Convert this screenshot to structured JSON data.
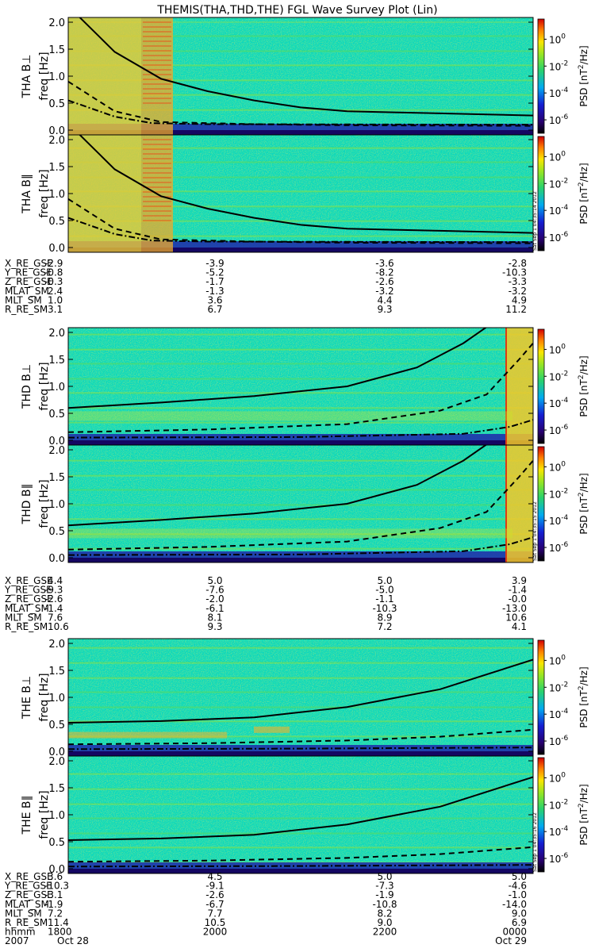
{
  "title": "THEMIS(THA,THD,THE) FGL Wave Survey Plot (Lin)",
  "colorbar": {
    "label": "PSD [nT²/Hz]",
    "label_base": "PSD [nT",
    "label_sup": "2",
    "label_tail": "/Hz]",
    "ticks": [
      {
        "base": "10",
        "exp": "0"
      },
      {
        "base": "10",
        "exp": "-2"
      },
      {
        "base": "10",
        "exp": "-4"
      },
      {
        "base": "10",
        "exp": "-6"
      }
    ]
  },
  "stamps": [
    "Sat Sep 1 04:35:14 2012",
    "Sat Sep 1 04:35:15 2012",
    "Sat Sep 1 04:35:16 2012"
  ],
  "chart_data": {
    "type": "heatmap",
    "title": "THEMIS(THA,THD,THE) FGL Wave Survey Plot (Lin)",
    "ylim": [
      0,
      2
    ],
    "yticks": [
      "0.0",
      "0.5",
      "1.0",
      "1.5",
      "2.0"
    ],
    "colorbar_range_log10": [
      -7,
      1.5
    ],
    "panels": [
      {
        "probe": "THA",
        "label": "THA B⊥",
        "ylabel": "freq [Hz]",
        "solid": [
          [
            0,
            2.3
          ],
          [
            0.1,
            1.45
          ],
          [
            0.2,
            0.95
          ],
          [
            0.3,
            0.72
          ],
          [
            0.4,
            0.55
          ],
          [
            0.5,
            0.42
          ],
          [
            0.6,
            0.35
          ],
          [
            0.7,
            0.33
          ],
          [
            0.8,
            0.31
          ],
          [
            0.9,
            0.29
          ],
          [
            1,
            0.27
          ]
        ],
        "dashed": [
          [
            0,
            0.9
          ],
          [
            0.1,
            0.35
          ],
          [
            0.2,
            0.15
          ],
          [
            0.4,
            0.11
          ],
          [
            0.6,
            0.09
          ],
          [
            1,
            0.08
          ]
        ],
        "dashdot": [
          [
            0,
            0.55
          ],
          [
            0.1,
            0.25
          ],
          [
            0.18,
            0.13
          ],
          [
            0.3,
            0.11
          ],
          [
            1,
            0.1
          ]
        ]
      },
      {
        "probe": "THA",
        "label": "THA B∥",
        "ylabel": "freq [Hz]",
        "solid": [
          [
            0,
            2.3
          ],
          [
            0.1,
            1.45
          ],
          [
            0.2,
            0.95
          ],
          [
            0.3,
            0.72
          ],
          [
            0.4,
            0.55
          ],
          [
            0.5,
            0.42
          ],
          [
            0.6,
            0.35
          ],
          [
            0.7,
            0.33
          ],
          [
            0.8,
            0.31
          ],
          [
            0.9,
            0.29
          ],
          [
            1,
            0.27
          ]
        ],
        "dashed": [
          [
            0,
            0.9
          ],
          [
            0.1,
            0.35
          ],
          [
            0.2,
            0.15
          ],
          [
            0.4,
            0.11
          ],
          [
            0.6,
            0.09
          ],
          [
            1,
            0.08
          ]
        ],
        "dashdot": [
          [
            0,
            0.55
          ],
          [
            0.1,
            0.25
          ],
          [
            0.18,
            0.13
          ],
          [
            0.3,
            0.11
          ],
          [
            1,
            0.1
          ]
        ]
      },
      {
        "probe": "THD",
        "label": "THD B⊥",
        "ylabel": "freq [Hz]",
        "solid": [
          [
            0,
            0.6
          ],
          [
            0.2,
            0.7
          ],
          [
            0.4,
            0.82
          ],
          [
            0.6,
            1.0
          ],
          [
            0.75,
            1.35
          ],
          [
            0.85,
            1.8
          ],
          [
            0.9,
            2.1
          ]
        ],
        "dashed": [
          [
            0,
            0.15
          ],
          [
            0.3,
            0.2
          ],
          [
            0.6,
            0.3
          ],
          [
            0.8,
            0.55
          ],
          [
            0.9,
            0.85
          ],
          [
            0.97,
            1.5
          ],
          [
            1,
            1.8
          ]
        ],
        "dashdot": [
          [
            0,
            0.05
          ],
          [
            0.5,
            0.06
          ],
          [
            0.85,
            0.12
          ],
          [
            0.95,
            0.25
          ],
          [
            1,
            0.38
          ]
        ]
      },
      {
        "probe": "THD",
        "label": "THD B∥",
        "ylabel": "freq [Hz]",
        "solid": [
          [
            0,
            0.6
          ],
          [
            0.2,
            0.7
          ],
          [
            0.4,
            0.82
          ],
          [
            0.6,
            1.0
          ],
          [
            0.75,
            1.35
          ],
          [
            0.85,
            1.8
          ],
          [
            0.9,
            2.1
          ]
        ],
        "dashed": [
          [
            0,
            0.15
          ],
          [
            0.3,
            0.2
          ],
          [
            0.6,
            0.3
          ],
          [
            0.8,
            0.55
          ],
          [
            0.9,
            0.85
          ],
          [
            0.97,
            1.5
          ],
          [
            1,
            1.8
          ]
        ],
        "dashdot": [
          [
            0,
            0.05
          ],
          [
            0.5,
            0.06
          ],
          [
            0.85,
            0.12
          ],
          [
            0.95,
            0.25
          ],
          [
            1,
            0.38
          ]
        ]
      },
      {
        "probe": "THE",
        "label": "THE B⊥",
        "ylabel": "freq [Hz]",
        "solid": [
          [
            0,
            0.53
          ],
          [
            0.2,
            0.56
          ],
          [
            0.4,
            0.63
          ],
          [
            0.6,
            0.82
          ],
          [
            0.8,
            1.15
          ],
          [
            1,
            1.7
          ]
        ],
        "dashed": [
          [
            0,
            0.13
          ],
          [
            0.3,
            0.15
          ],
          [
            0.6,
            0.2
          ],
          [
            0.8,
            0.27
          ],
          [
            1,
            0.4
          ]
        ],
        "dashdot": [
          [
            0,
            0.04
          ],
          [
            0.5,
            0.05
          ],
          [
            1,
            0.07
          ]
        ]
      },
      {
        "probe": "THE",
        "label": "THE B∥",
        "ylabel": "freq [Hz]",
        "solid": [
          [
            0,
            0.53
          ],
          [
            0.2,
            0.56
          ],
          [
            0.4,
            0.63
          ],
          [
            0.6,
            0.82
          ],
          [
            0.8,
            1.15
          ],
          [
            1,
            1.7
          ]
        ],
        "dashed": [
          [
            0,
            0.13
          ],
          [
            0.3,
            0.15
          ],
          [
            0.6,
            0.2
          ],
          [
            0.8,
            0.27
          ],
          [
            1,
            0.4
          ]
        ],
        "dashdot": [
          [
            0,
            0.04
          ],
          [
            0.5,
            0.05
          ],
          [
            1,
            0.07
          ]
        ]
      }
    ],
    "ephemeris": [
      {
        "probe": "THA",
        "labels": [
          "X_RE_GSE",
          "Y_RE_GSE",
          "Z_RE_GSE",
          "MLAT_SM",
          "MLT_SM",
          "R_RE_SM"
        ],
        "columns": [
          [
            "-2.9",
            "-0.8",
            "-0.3",
            "2.4",
            "1.0",
            "3.1"
          ],
          [
            "-3.9",
            "-5.2",
            "-1.7",
            "-1.3",
            "3.6",
            "6.7"
          ],
          [
            "-3.6",
            "-8.2",
            "-2.6",
            "-3.2",
            "4.4",
            "9.3"
          ],
          [
            "-2.8",
            "-10.3",
            "-3.3",
            "-3.2",
            "4.9",
            "11.2"
          ]
        ]
      },
      {
        "probe": "THD",
        "labels": [
          "X_RE_GSE",
          "Y_RE_GSE",
          "Z_RE_GSE",
          "MLAT_SM",
          "MLT_SM",
          "R_RE_SM"
        ],
        "columns": [
          [
            "4.4",
            "-9.3",
            "-2.6",
            "-1.4",
            "7.6",
            "10.6"
          ],
          [
            "5.0",
            "-7.6",
            "-2.0",
            "-6.1",
            "8.1",
            "9.3"
          ],
          [
            "5.0",
            "-5.0",
            "-1.1",
            "-10.3",
            "8.9",
            "7.2"
          ],
          [
            "3.9",
            "-1.4",
            "-0.0",
            "-13.0",
            "10.6",
            "4.1"
          ]
        ]
      },
      {
        "probe": "THE",
        "labels": [
          "X_RE_GSE",
          "Y_RE_GSE",
          "Z_RE_GSE",
          "MLAT_SM",
          "MLT_SM",
          "R_RE_SM",
          "hhmm",
          "2007"
        ],
        "columns": [
          [
            "3.6",
            "-10.3",
            "-3.1",
            "-1.9",
            "7.2",
            "11.4",
            "1800",
            "Oct 28"
          ],
          [
            "4.5",
            "-9.1",
            "-2.6",
            "-6.7",
            "7.7",
            "10.5",
            "2000",
            ""
          ],
          [
            "5.0",
            "-7.3",
            "-1.9",
            "-10.8",
            "8.2",
            "9.0",
            "2200",
            ""
          ],
          [
            "5.0",
            "-4.6",
            "-1.0",
            "-14.0",
            "9.0",
            "6.9",
            "0000",
            "Oct 29"
          ]
        ]
      }
    ]
  }
}
